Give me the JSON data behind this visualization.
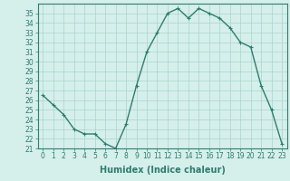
{
  "x": [
    0,
    1,
    2,
    3,
    4,
    5,
    6,
    7,
    8,
    9,
    10,
    11,
    12,
    13,
    14,
    15,
    16,
    17,
    18,
    19,
    20,
    21,
    22,
    23
  ],
  "y": [
    26.5,
    25.5,
    24.5,
    23.0,
    22.5,
    22.5,
    21.5,
    21.0,
    23.5,
    27.5,
    31.0,
    33.0,
    35.0,
    35.5,
    34.5,
    35.5,
    35.0,
    34.5,
    33.5,
    32.0,
    31.5,
    27.5,
    25.0,
    21.5
  ],
  "line_color": "#2e7d6e",
  "marker": "+",
  "marker_size": 3,
  "bg_color": "#d5efeb",
  "grid_color": "#aad4cc",
  "xlabel": "Humidex (Indice chaleur)",
  "ylim": [
    21,
    36
  ],
  "xlim": [
    -0.5,
    23.5
  ],
  "yticks": [
    21,
    22,
    23,
    24,
    25,
    26,
    27,
    28,
    29,
    30,
    31,
    32,
    33,
    34,
    35
  ],
  "xticks": [
    0,
    1,
    2,
    3,
    4,
    5,
    6,
    7,
    8,
    9,
    10,
    11,
    12,
    13,
    14,
    15,
    16,
    17,
    18,
    19,
    20,
    21,
    22,
    23
  ],
  "tick_label_size": 5.5,
  "xlabel_size": 7,
  "line_width": 1.0
}
